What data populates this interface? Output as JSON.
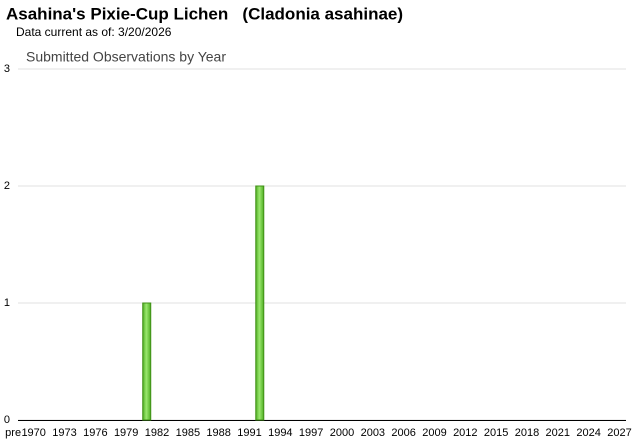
{
  "header": {
    "title": "Asahina's Pixie-Cup Lichen   (Cladonia asahinae)",
    "subtitle": "Data current as of: 3/20/2026"
  },
  "chart_data": {
    "type": "bar",
    "title": "Submitted Observations by Year",
    "categories": [
      "pre",
      null,
      "1970",
      null,
      null,
      "1973",
      null,
      null,
      "1976",
      null,
      null,
      "1979",
      null,
      null,
      "1982",
      null,
      null,
      "1985",
      null,
      null,
      "1988",
      null,
      null,
      "1991",
      null,
      null,
      "1994",
      null,
      null,
      "1997",
      null,
      null,
      "2000",
      null,
      null,
      "2003",
      null,
      null,
      "2006",
      null,
      null,
      "2009",
      null,
      null,
      "2012",
      null,
      null,
      "2015",
      null,
      null,
      "2018",
      null,
      null,
      "2021",
      null,
      null,
      "2024",
      null,
      null,
      "2027"
    ],
    "values": [
      0,
      0,
      0,
      0,
      0,
      0,
      0,
      0,
      0,
      0,
      0,
      0,
      0,
      1,
      0,
      0,
      0,
      0,
      0,
      0,
      0,
      0,
      0,
      0,
      2,
      0,
      0,
      0,
      0,
      0,
      0,
      0,
      0,
      0,
      0,
      0,
      0,
      0,
      0,
      0,
      0,
      0,
      0,
      0,
      0,
      0,
      0,
      0,
      0,
      0,
      0,
      0,
      0,
      0,
      0,
      0,
      0,
      0,
      0,
      0
    ],
    "color": "#7ed957",
    "ylim": [
      0,
      3
    ],
    "yticks": [
      0,
      1,
      2,
      3
    ],
    "grid": true
  }
}
